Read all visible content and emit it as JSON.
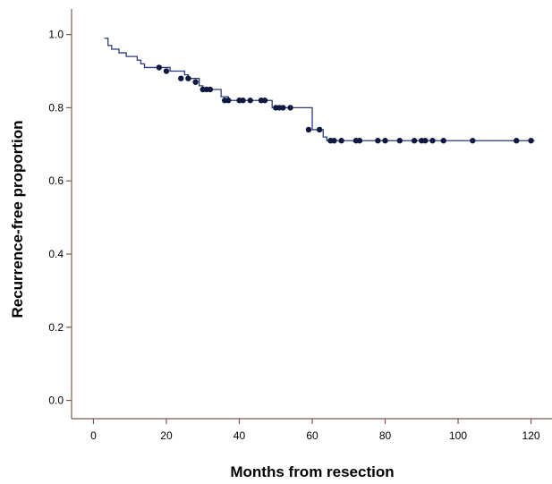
{
  "chart_data": {
    "type": "line",
    "step": true,
    "xlabel": "Months from resection",
    "ylabel": "Recurrence-free proportion",
    "xlim": [
      -6,
      126
    ],
    "ylim": [
      -0.05,
      1.07
    ],
    "xticks": [
      0,
      20,
      40,
      60,
      80,
      100,
      120
    ],
    "yticks": [
      0.0,
      0.2,
      0.4,
      0.6,
      0.8,
      1.0
    ],
    "grid": false,
    "colors": {
      "line": "#2b3a7a",
      "marker": "#0d1840",
      "axis": "#7a5a4a"
    },
    "series": [
      {
        "step_points": [
          [
            3,
            0.99
          ],
          [
            4,
            0.97
          ],
          [
            5,
            0.96
          ],
          [
            7,
            0.95
          ],
          [
            9,
            0.94
          ],
          [
            12,
            0.93
          ],
          [
            13,
            0.92
          ],
          [
            14,
            0.91
          ],
          [
            21,
            0.9
          ],
          [
            25,
            0.89
          ],
          [
            26,
            0.88
          ],
          [
            29,
            0.86
          ],
          [
            30,
            0.85
          ],
          [
            35,
            0.83
          ],
          [
            37,
            0.82
          ],
          [
            49,
            0.8
          ],
          [
            60,
            0.74
          ],
          [
            63,
            0.72
          ],
          [
            64,
            0.71
          ],
          [
            121,
            0.71
          ]
        ],
        "censored": [
          [
            18,
            0.91
          ],
          [
            20,
            0.9
          ],
          [
            24,
            0.88
          ],
          [
            26,
            0.88
          ],
          [
            28,
            0.87
          ],
          [
            30,
            0.85
          ],
          [
            31,
            0.85
          ],
          [
            32,
            0.85
          ],
          [
            36,
            0.82
          ],
          [
            37,
            0.82
          ],
          [
            40,
            0.82
          ],
          [
            41,
            0.82
          ],
          [
            43,
            0.82
          ],
          [
            46,
            0.82
          ],
          [
            47,
            0.82
          ],
          [
            50,
            0.8
          ],
          [
            51,
            0.8
          ],
          [
            52,
            0.8
          ],
          [
            54,
            0.8
          ],
          [
            59,
            0.74
          ],
          [
            62,
            0.74
          ],
          [
            65,
            0.71
          ],
          [
            66,
            0.71
          ],
          [
            68,
            0.71
          ],
          [
            72,
            0.71
          ],
          [
            73,
            0.71
          ],
          [
            78,
            0.71
          ],
          [
            80,
            0.71
          ],
          [
            84,
            0.71
          ],
          [
            88,
            0.71
          ],
          [
            90,
            0.71
          ],
          [
            91,
            0.71
          ],
          [
            93,
            0.71
          ],
          [
            96,
            0.71
          ],
          [
            104,
            0.71
          ],
          [
            116,
            0.71
          ],
          [
            120,
            0.71
          ]
        ]
      }
    ]
  }
}
